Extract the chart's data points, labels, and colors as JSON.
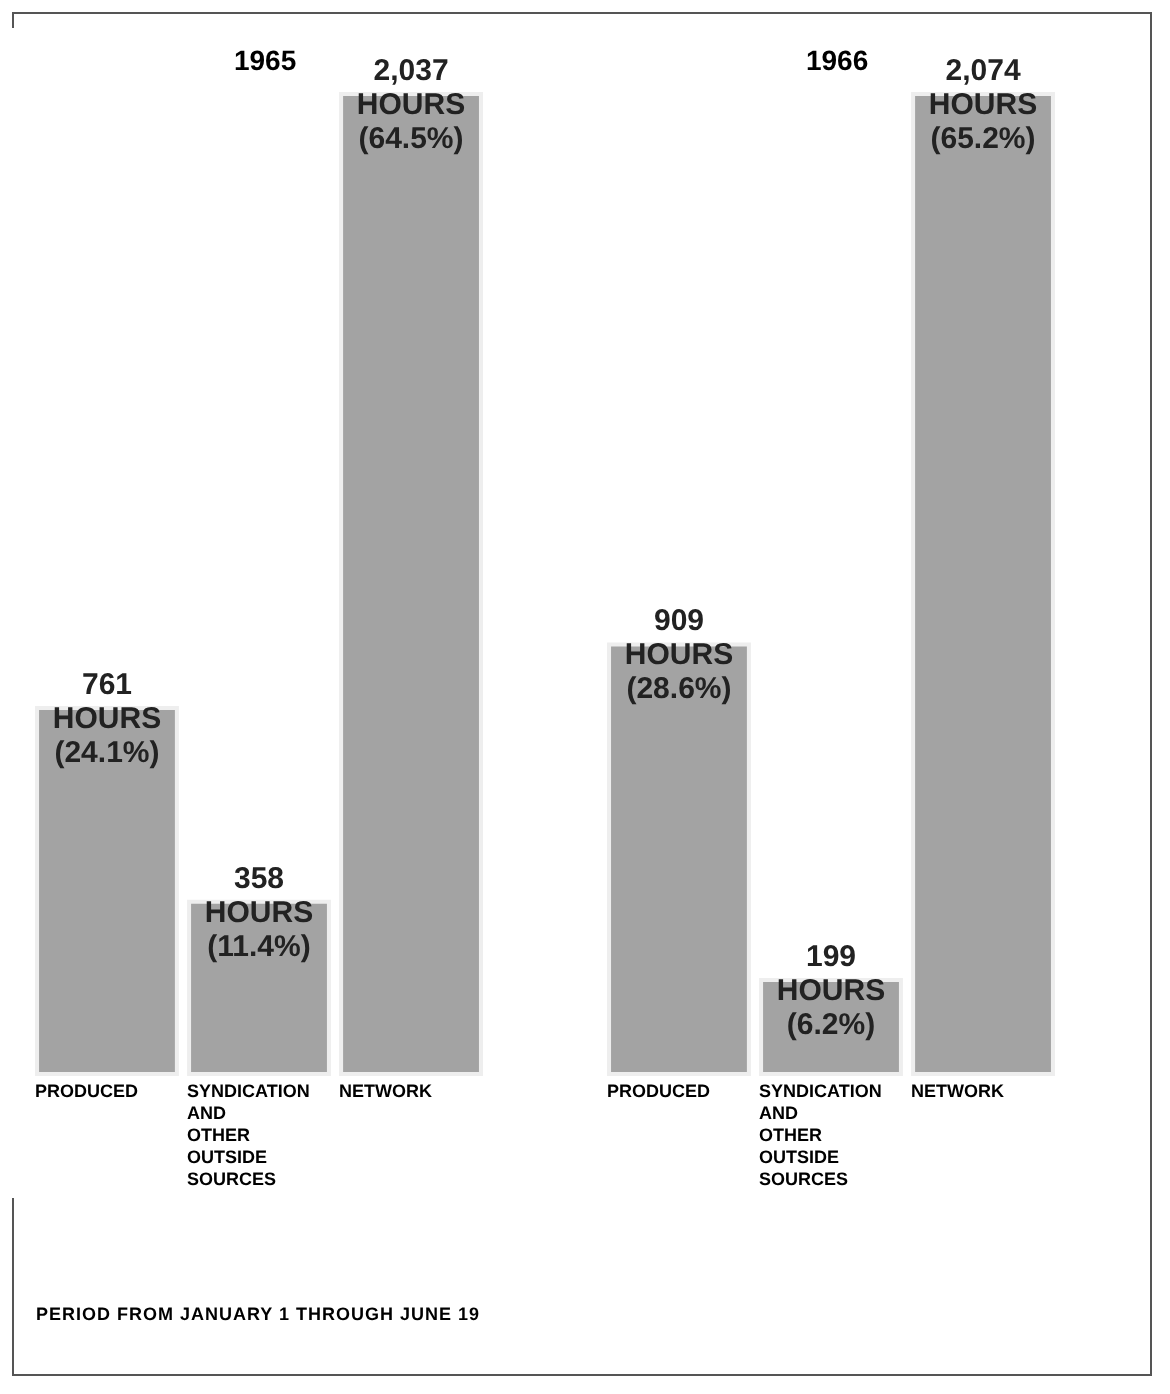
{
  "chart_data": [
    {
      "type": "bar",
      "title": "1965",
      "categories": [
        "PRODUCED",
        "SYNDICATION AND OTHER OUTSIDE SOURCES",
        "NETWORK"
      ],
      "values": [
        761,
        358,
        2037
      ],
      "value_labels": [
        "761 HOURS (24.1%)",
        "358 HOURS (11.4%)",
        "2,037 HOURS (64.5%)"
      ],
      "color": "#a3a3a3",
      "annotations": [
        "PERIOD FROM JANUARY 1 THROUGH JUNE 19"
      ]
    },
    {
      "type": "bar",
      "title": "1966",
      "categories": [
        "PRODUCED",
        "SYNDICATION AND OTHER OUTSIDE SOURCES",
        "NETWORK"
      ],
      "values": [
        909,
        199,
        2074
      ],
      "value_labels": [
        "909 HOURS (28.6%)",
        "199 HOURS (6.2%)",
        "2,074 HOURS (65.2%)"
      ],
      "color": "#a3a3a3"
    }
  ]
}
